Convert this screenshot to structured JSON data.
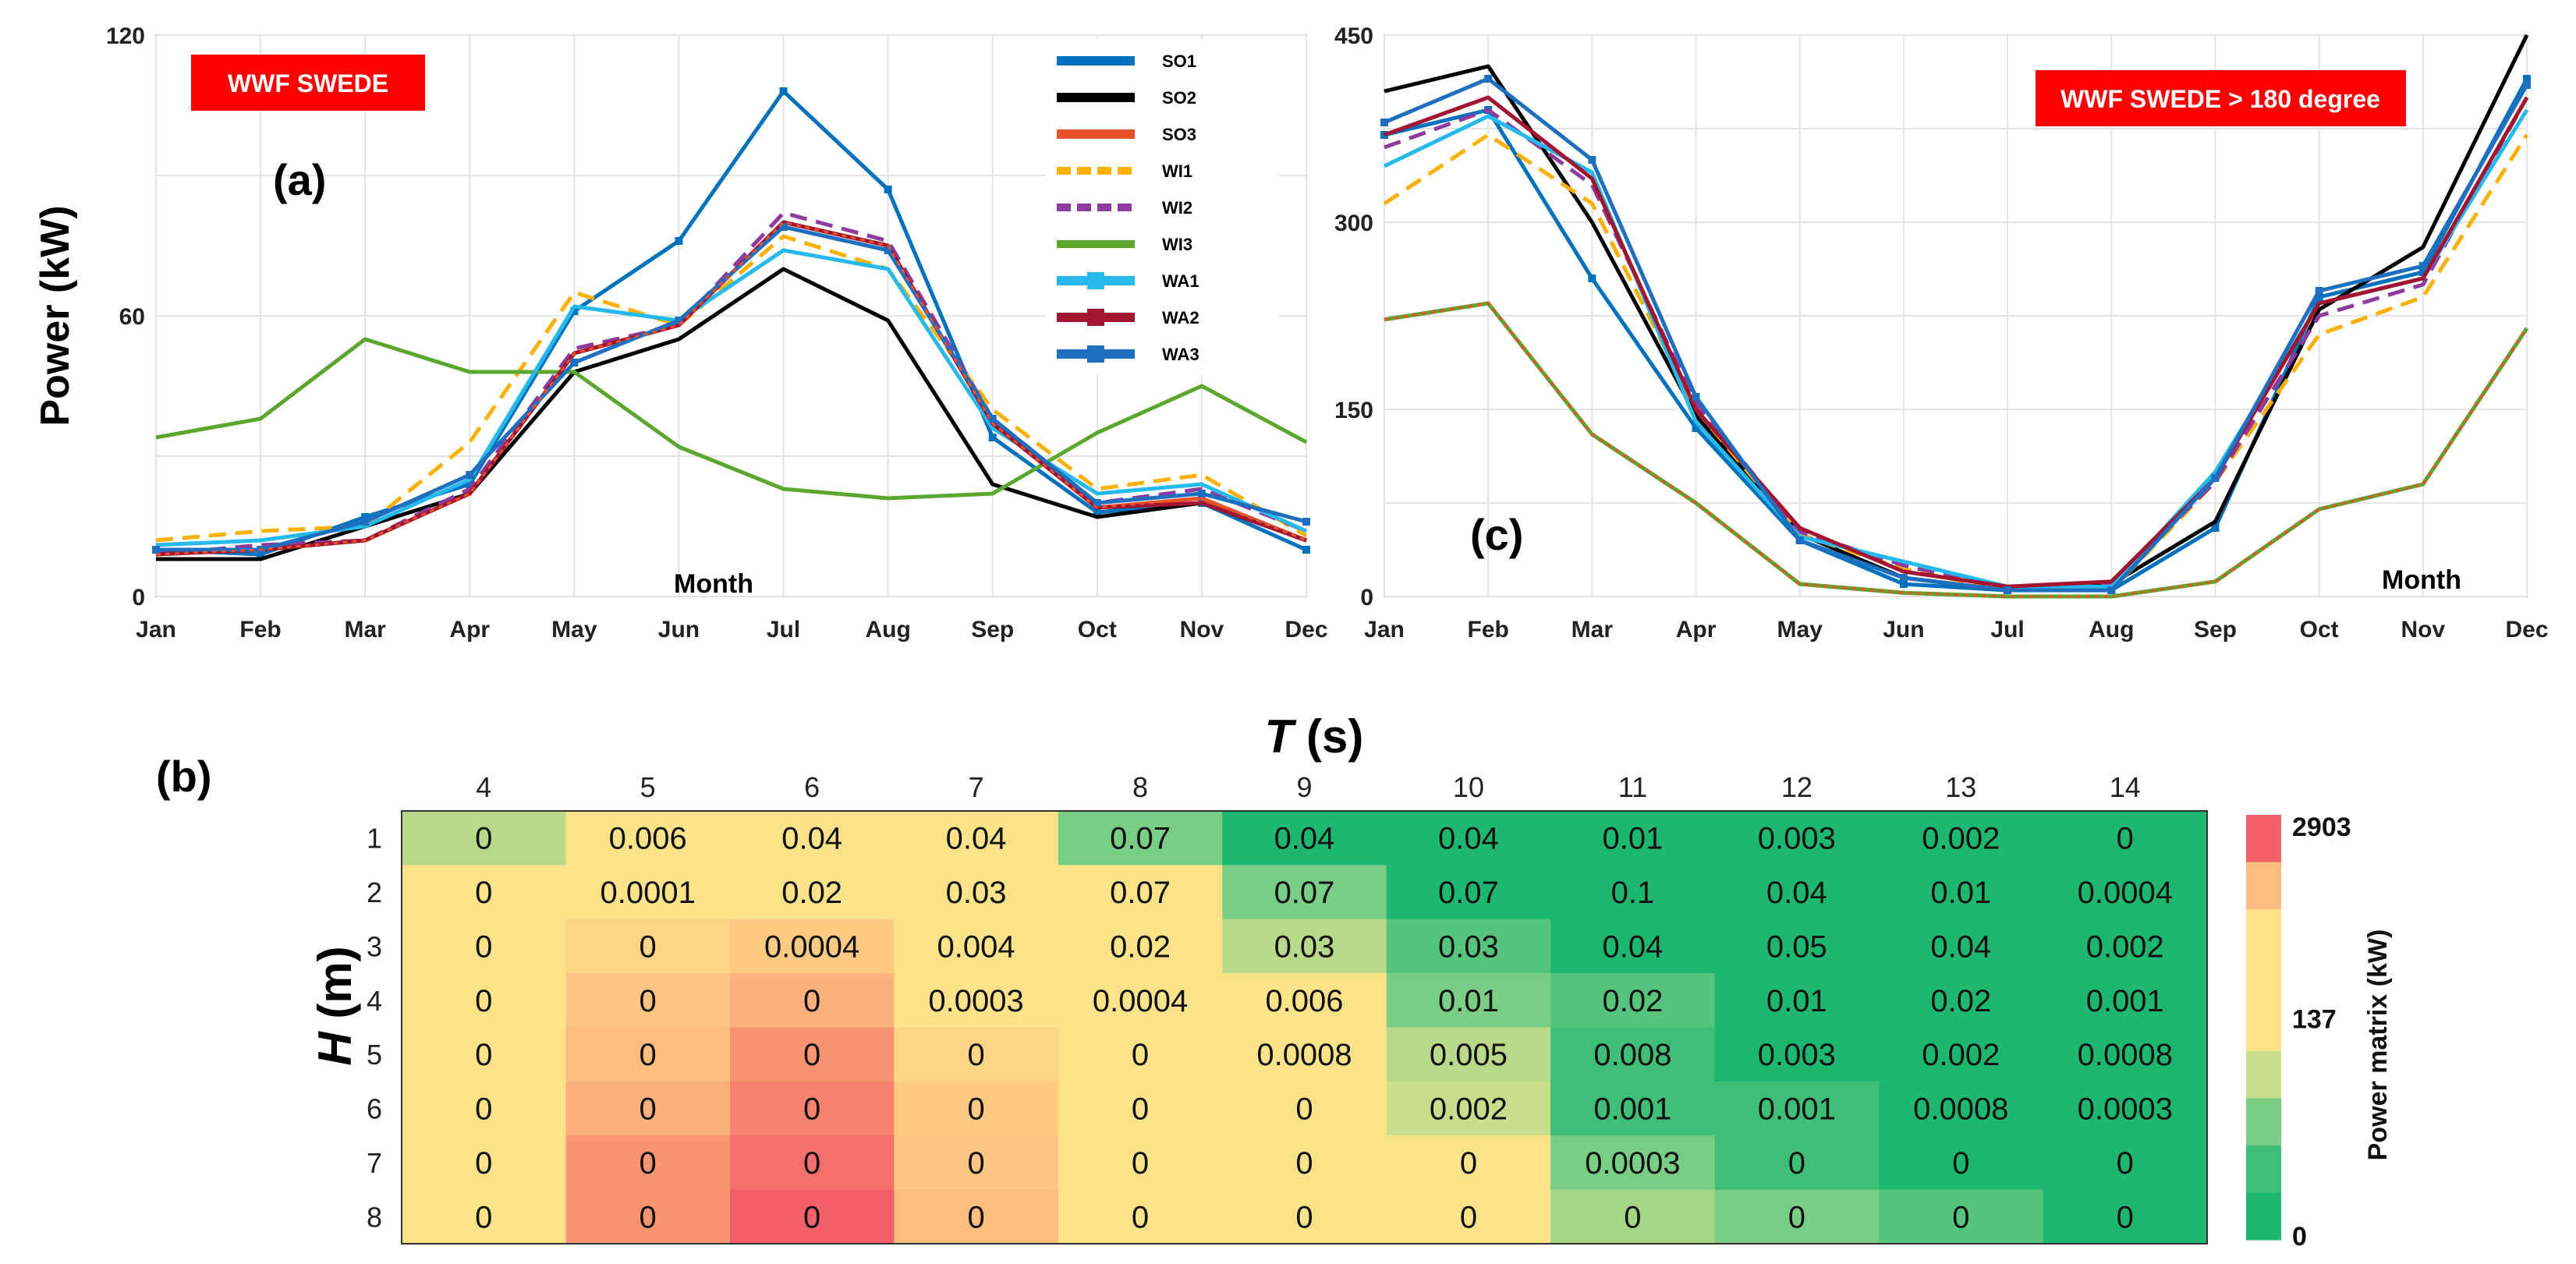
{
  "chart_data": [
    {
      "type": "line",
      "panel_label": "(a)",
      "tag": "WWF SWEDE",
      "ylabel": "Power (kW)",
      "xlabel": "Month",
      "ylim": [
        0,
        120
      ],
      "yticks": [
        0,
        60,
        120
      ],
      "grid": true,
      "legend_position": "top-right",
      "categories": [
        "Jan",
        "Feb",
        "Mar",
        "Apr",
        "May",
        "Jun",
        "Jul",
        "Aug",
        "Sep",
        "Oct",
        "Nov",
        "Dec"
      ],
      "series": [
        {
          "name": "SO1",
          "color": "#0072BD",
          "dash": "solid",
          "values": [
            10,
            9,
            17,
            24,
            61,
            76,
            108,
            87,
            34,
            18,
            20,
            10
          ]
        },
        {
          "name": "SO2",
          "color": "#000000",
          "dash": "solid",
          "values": [
            8,
            8,
            15,
            22,
            48,
            55,
            70,
            59,
            24,
            17,
            20,
            12
          ]
        },
        {
          "name": "SO3",
          "color": "#E8522A",
          "dash": "solid",
          "values": [
            9,
            10,
            12,
            22,
            52,
            58,
            80,
            75,
            37,
            19,
            21,
            12
          ]
        },
        {
          "name": "WI1",
          "color": "#FFB000",
          "dash": "dashed",
          "values": [
            12,
            14,
            15,
            33,
            65,
            58,
            77,
            70,
            40,
            23,
            26,
            13
          ]
        },
        {
          "name": "WI2",
          "color": "#8E3A9E",
          "dash": "dashed",
          "values": [
            9,
            11,
            12,
            23,
            53,
            58,
            82,
            76,
            38,
            20,
            23,
            14
          ]
        },
        {
          "name": "WI3",
          "color": "#5BA72E",
          "dash": "solid",
          "values": [
            34,
            38,
            55,
            48,
            48,
            32,
            23,
            21,
            22,
            35,
            45,
            33
          ]
        },
        {
          "name": "WA1",
          "color": "#25B9EE",
          "dash": "solid",
          "values": [
            11,
            12,
            15,
            25,
            62,
            59,
            74,
            70,
            36,
            22,
            24,
            14
          ]
        },
        {
          "name": "WA2",
          "color": "#A2142F",
          "dash": "solid",
          "values": [
            9,
            10,
            12,
            22,
            52,
            58,
            80,
            75,
            37,
            19,
            20,
            12
          ]
        },
        {
          "name": "WA3",
          "color": "#1E6FC0",
          "dash": "solid",
          "values": [
            10,
            10,
            16,
            26,
            50,
            59,
            79,
            74,
            38,
            20,
            22,
            16
          ]
        }
      ]
    },
    {
      "type": "line",
      "panel_label": "(c)",
      "tag": "WWF SWEDE > 180 degree",
      "xlabel": "Month",
      "ylim": [
        0,
        450
      ],
      "yticks": [
        0,
        150,
        300,
        450
      ],
      "grid": true,
      "categories": [
        "Jan",
        "Feb",
        "Mar",
        "Apr",
        "May",
        "Jun",
        "Jul",
        "Aug",
        "Sep",
        "Oct",
        "Nov",
        "Dec"
      ],
      "series": [
        {
          "name": "SO1",
          "color": "#0072BD",
          "dash": "solid",
          "values": [
            370,
            390,
            255,
            135,
            45,
            10,
            5,
            5,
            55,
            240,
            260,
            415
          ]
        },
        {
          "name": "SO2",
          "color": "#000000",
          "dash": "solid",
          "values": [
            405,
            425,
            300,
            145,
            50,
            15,
            5,
            10,
            60,
            230,
            280,
            450
          ]
        },
        {
          "name": "SO3",
          "color": "#E8522A",
          "dash": "solid",
          "values": [
            222,
            235,
            130,
            75,
            10,
            3,
            0,
            0,
            12,
            70,
            90,
            215
          ]
        },
        {
          "name": "WI1",
          "color": "#FFB000",
          "dash": "dashed",
          "values": [
            315,
            370,
            315,
            150,
            50,
            22,
            5,
            5,
            92,
            210,
            240,
            370
          ]
        },
        {
          "name": "WI2",
          "color": "#8E3A9E",
          "dash": "dashed",
          "values": [
            360,
            390,
            330,
            155,
            52,
            25,
            6,
            10,
            92,
            225,
            250,
            400
          ]
        },
        {
          "name": "WI3",
          "color": "#5BA72E",
          "dash": "solid",
          "values": [
            222,
            235,
            130,
            75,
            10,
            3,
            0,
            0,
            12,
            70,
            90,
            215
          ]
        },
        {
          "name": "WA1",
          "color": "#25B9EE",
          "dash": "solid",
          "values": [
            345,
            385,
            340,
            140,
            48,
            28,
            8,
            8,
            100,
            235,
            255,
            390
          ]
        },
        {
          "name": "WA2",
          "color": "#A2142F",
          "dash": "solid",
          "values": [
            370,
            400,
            335,
            150,
            55,
            20,
            8,
            12,
            95,
            235,
            255,
            400
          ]
        },
        {
          "name": "WA3",
          "color": "#1E6FC0",
          "dash": "solid",
          "values": [
            380,
            415,
            350,
            160,
            45,
            15,
            5,
            5,
            95,
            245,
            265,
            410
          ]
        }
      ]
    },
    {
      "type": "heatmap",
      "panel_label": "(b)",
      "xlabel_var": "T",
      "xlabel_unit": "(s)",
      "ylabel_var": "H",
      "ylabel_unit": "(m)",
      "x": [
        "4",
        "5",
        "6",
        "7",
        "8",
        "9",
        "10",
        "11",
        "12",
        "13",
        "14"
      ],
      "y": [
        "1",
        "2",
        "3",
        "4",
        "5",
        "6",
        "7",
        "8"
      ],
      "values": [
        [
          "0",
          "0.006",
          "0.04",
          "0.04",
          "0.07",
          "0.04",
          "0.04",
          "0.01",
          "0.003",
          "0.002",
          "0"
        ],
        [
          "0",
          "0.0001",
          "0.02",
          "0.03",
          "0.07",
          "0.07",
          "0.07",
          "0.1",
          "0.04",
          "0.01",
          "0.0004"
        ],
        [
          "0",
          "0",
          "0.0004",
          "0.004",
          "0.02",
          "0.03",
          "0.03",
          "0.04",
          "0.05",
          "0.04",
          "0.002"
        ],
        [
          "0",
          "0",
          "0",
          "0.0003",
          "0.0004",
          "0.006",
          "0.01",
          "0.02",
          "0.01",
          "0.02",
          "0.001"
        ],
        [
          "0",
          "0",
          "0",
          "0",
          "0",
          "0.0008",
          "0.005",
          "0.008",
          "0.003",
          "0.002",
          "0.0008"
        ],
        [
          "0",
          "0",
          "0",
          "0",
          "0",
          "0",
          "0.002",
          "0.001",
          "0.001",
          "0.0008",
          "0.0003"
        ],
        [
          "0",
          "0",
          "0",
          "0",
          "0",
          "0",
          "0",
          "0.0003",
          "0",
          "0",
          "0"
        ],
        [
          "0",
          "0",
          "0",
          "0",
          "0",
          "0",
          "0",
          "0",
          "0",
          "0",
          "0"
        ]
      ],
      "cell_colors": [
        [
          "#B8D98A",
          "#FCE389",
          "#FCE389",
          "#FCE389",
          "#7ACD85",
          "#1DB770",
          "#1DB770",
          "#1DB770",
          "#1DB770",
          "#1DB770",
          "#1DB770"
        ],
        [
          "#FCE389",
          "#FCE389",
          "#FCE389",
          "#FCE389",
          "#FCE389",
          "#7ACD85",
          "#1DB770",
          "#1DB770",
          "#1DB770",
          "#1DB770",
          "#1DB770"
        ],
        [
          "#FCE389",
          "#FCD486",
          "#FCCA83",
          "#FCE389",
          "#FCE389",
          "#B8D98A",
          "#56C47C",
          "#1DB770",
          "#1DB770",
          "#1DB770",
          "#1DB770"
        ],
        [
          "#FCE389",
          "#FCC682",
          "#FCB07B",
          "#FCE389",
          "#FCE389",
          "#FCE389",
          "#7ACD85",
          "#56C47C",
          "#1DB770",
          "#1DB770",
          "#1DB770"
        ],
        [
          "#FCE389",
          "#FCBE80",
          "#F99472",
          "#FCD486",
          "#FCE389",
          "#FCE389",
          "#B8D98A",
          "#3EBE76",
          "#1DB770",
          "#1DB770",
          "#1DB770"
        ],
        [
          "#FCE389",
          "#FCB07B",
          "#F7836F",
          "#FCCA83",
          "#FCE389",
          "#FCE389",
          "#C9DD8C",
          "#3EBE76",
          "#3EBE76",
          "#1DB770",
          "#1DB770"
        ],
        [
          "#FCE389",
          "#F99472",
          "#F5706C",
          "#FCC682",
          "#FCE389",
          "#FCE389",
          "#FCE389",
          "#7ACD85",
          "#3EBE76",
          "#1DB770",
          "#1DB770"
        ],
        [
          "#FCE389",
          "#F99472",
          "#F4606A",
          "#FCBE80",
          "#FCE389",
          "#FCE389",
          "#FCE389",
          "#A5D587",
          "#7ACD85",
          "#56C47C",
          "#1DB770"
        ]
      ],
      "colorbar": {
        "label": "Power matrix (kW)",
        "ticks": [
          "2903",
          "137",
          "0"
        ],
        "colors": [
          "#F4606A",
          "#FCBE80",
          "#FCE389",
          "#FCE389",
          "#FCE389",
          "#C9DD8C",
          "#7ACD85",
          "#3EBE76",
          "#1DB770"
        ]
      }
    }
  ]
}
